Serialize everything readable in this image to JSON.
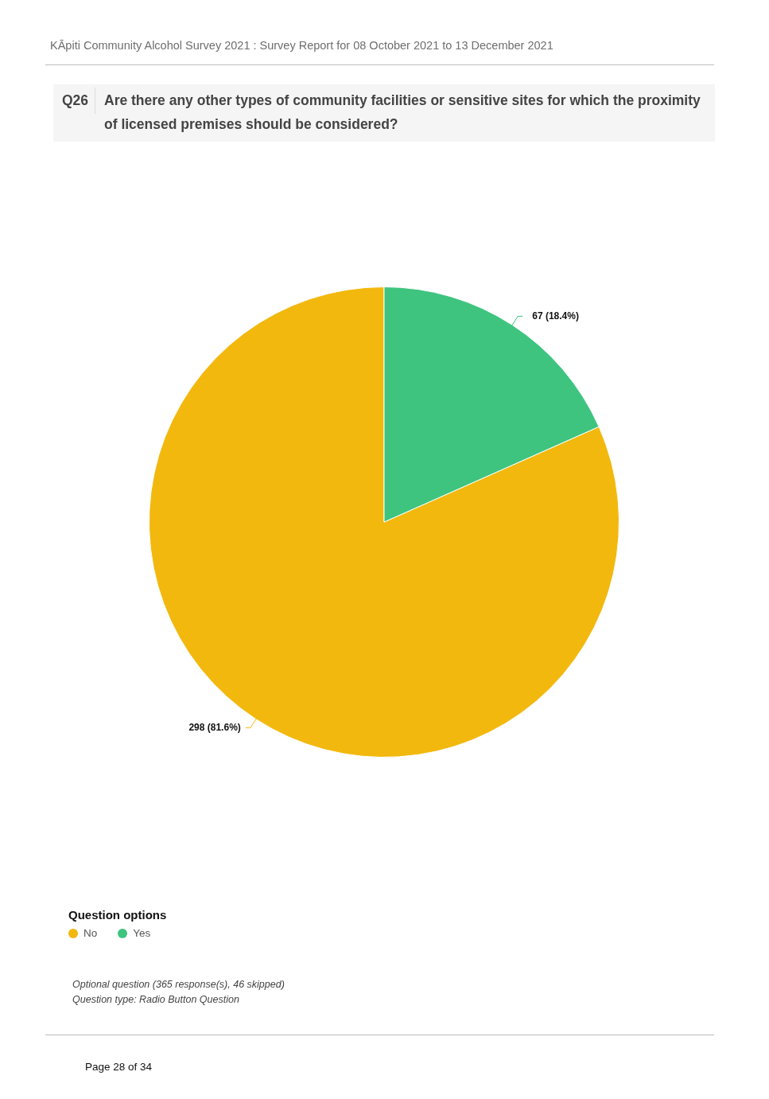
{
  "chart_data": {
    "type": "pie",
    "title": "Are there any other types of community facilities or sensitive sites for which the proximity of licensed premises should be considered?",
    "annotations": [
      "KĀpiti Community Alcohol Survey 2021 : Survey Report for 08 October 2021 to 13 December 2021",
      "Q26",
      "Optional question (365 response(s), 46 skipped)",
      "Question type: Radio Button Question",
      "Page 28 of 34"
    ],
    "categories": [
      "No",
      "Yes"
    ],
    "values": [
      298,
      67
    ],
    "colors": [
      "#f2b80d",
      "#3ec47f"
    ],
    "value_labels": [
      "298 (81.6%)",
      "67 (18.4%)"
    ],
    "legend_title": "Question options",
    "legend": "bottom left"
  }
}
